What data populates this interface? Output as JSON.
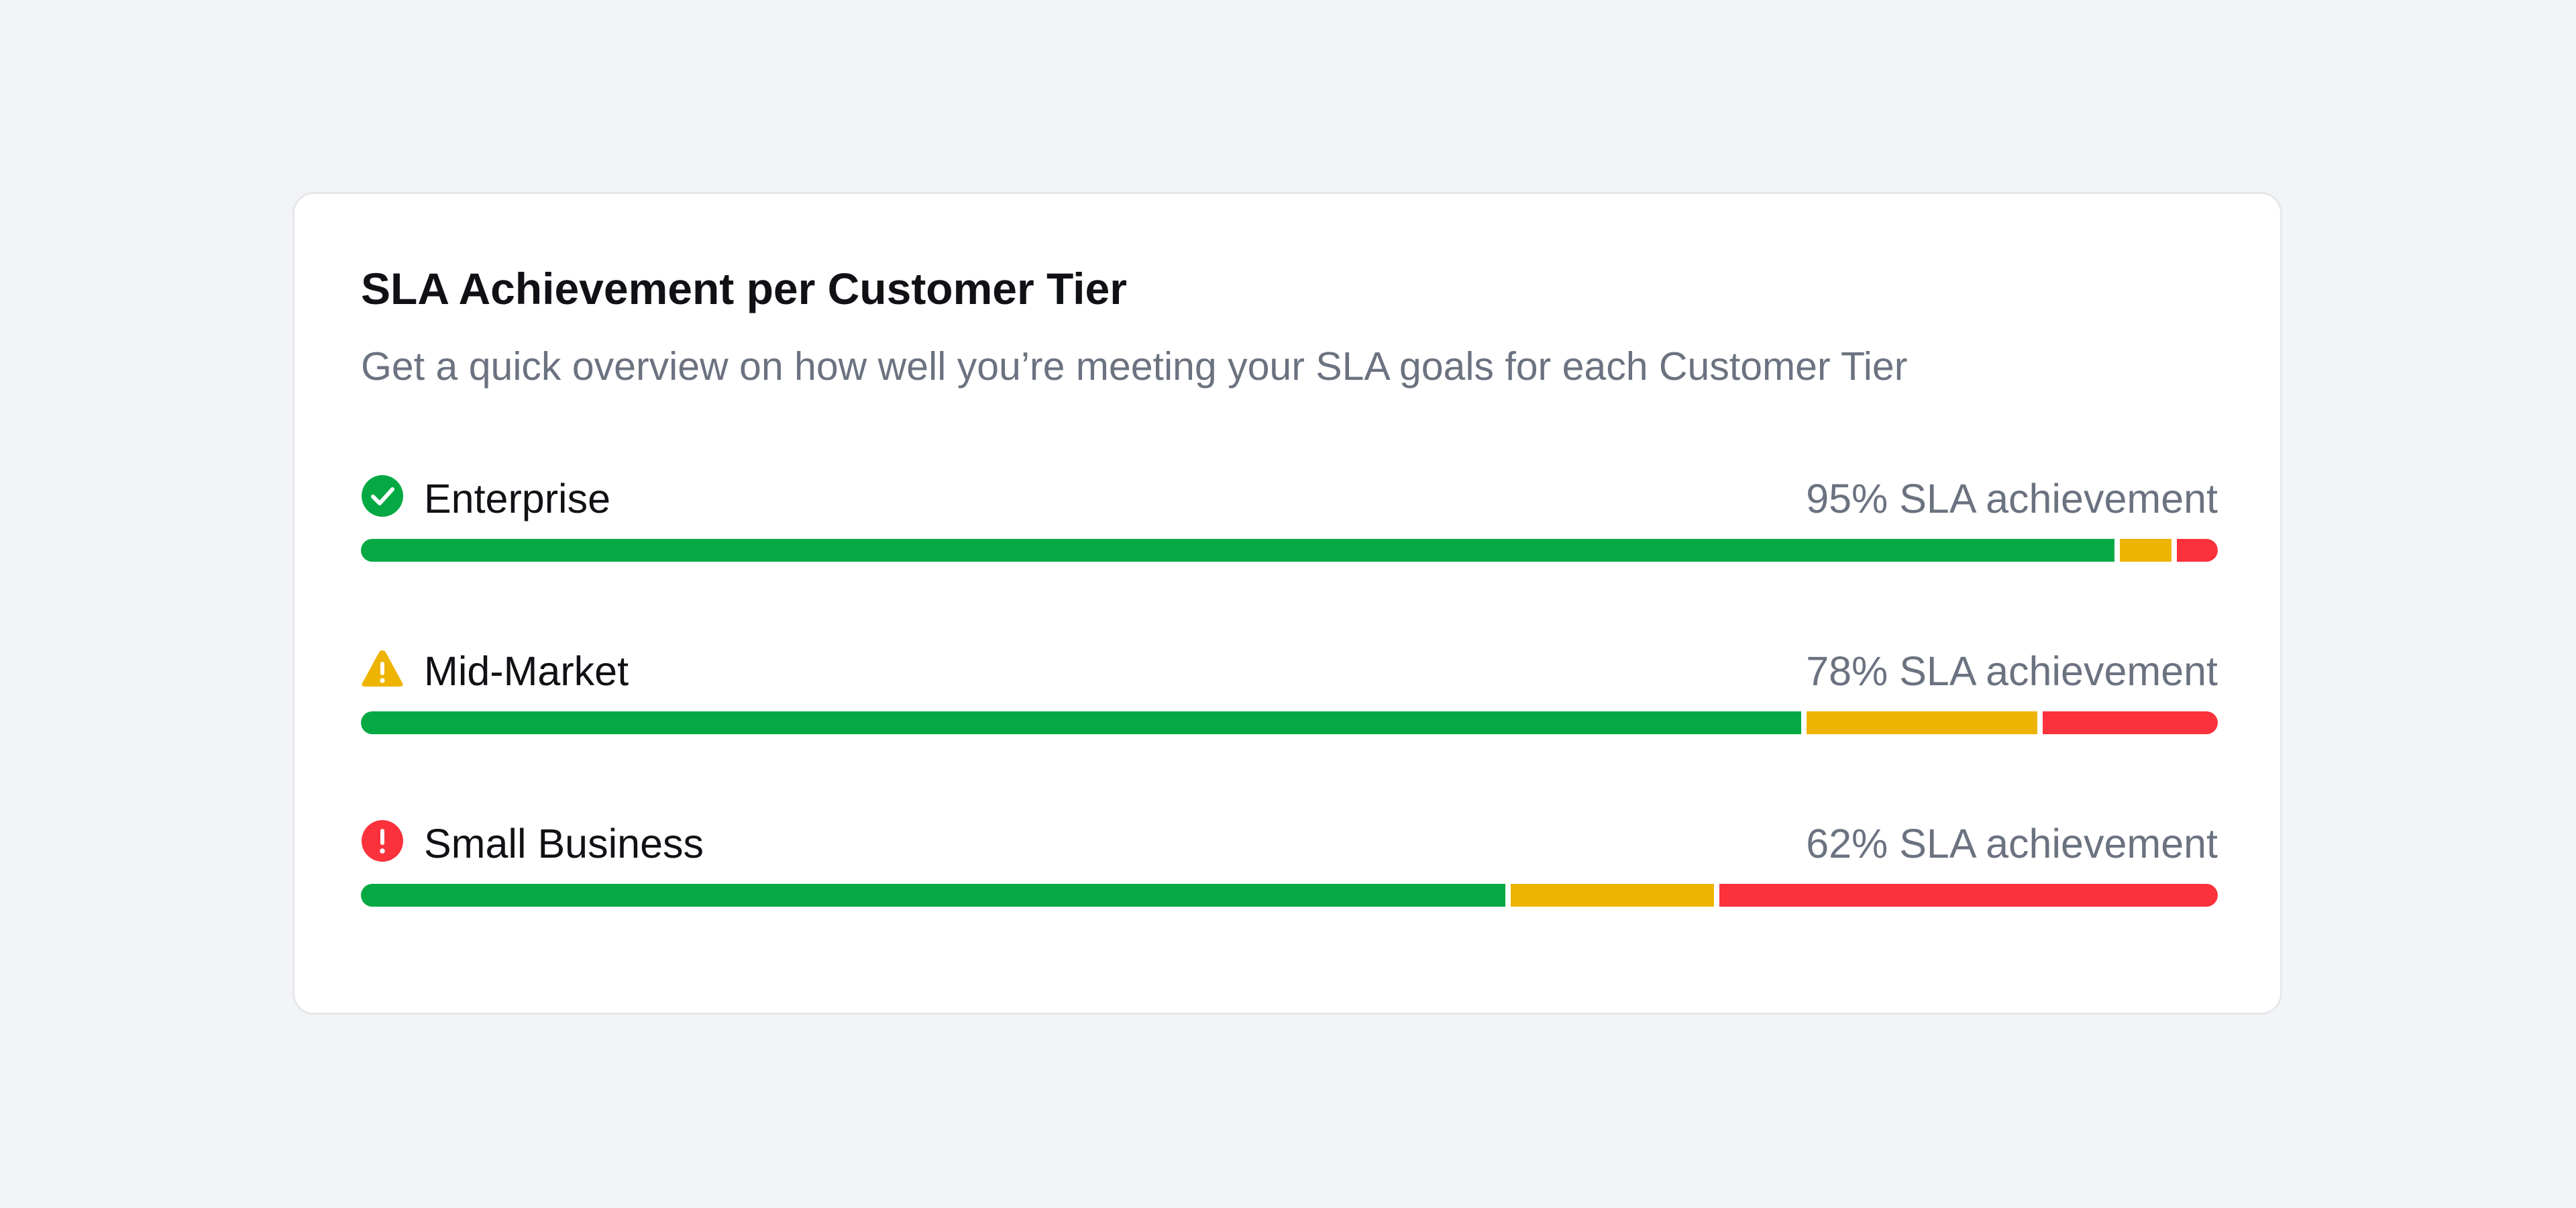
{
  "card": {
    "title": "SLA Achievement per Customer Tier",
    "subtitle": "Get a quick overview on how well you’re meeting your SLA goals for each Customer Tier"
  },
  "colors": {
    "met": "#04a944",
    "at_risk": "#eeb402",
    "breached": "#fb323c"
  },
  "tiers": [
    {
      "name": "Enterprise",
      "achievement_label": "95% SLA achievement",
      "status_icon": "check-circle-icon",
      "icon_color": "#04a944",
      "segments": {
        "met": 95,
        "at_risk": 2.8,
        "breached": 2.2
      }
    },
    {
      "name": "Mid-Market",
      "achievement_label": "78% SLA achievement",
      "status_icon": "warning-triangle-icon",
      "icon_color": "#eeb402",
      "segments": {
        "met": 78,
        "at_risk": 12.5,
        "breached": 9.5
      }
    },
    {
      "name": "Small Business",
      "achievement_label": "62% SLA achievement",
      "status_icon": "alert-circle-icon",
      "icon_color": "#fb323c",
      "segments": {
        "met": 62,
        "at_risk": 11,
        "breached": 27
      }
    }
  ]
}
